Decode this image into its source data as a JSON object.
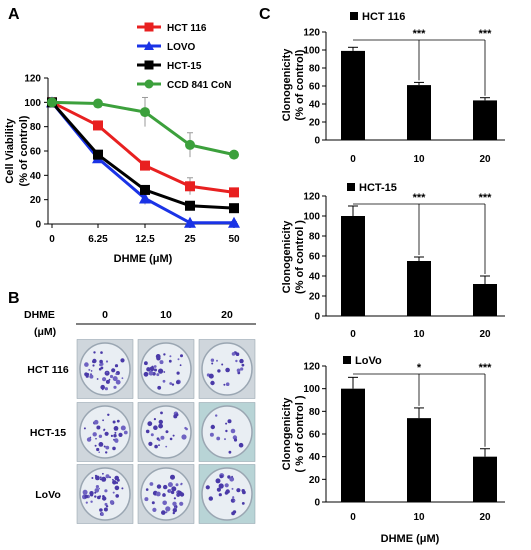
{
  "panels": {
    "A": "A",
    "B": "B",
    "C": "C"
  },
  "chart_data": [
    {
      "type": "line",
      "xlabel": "DHME (μM)",
      "ylabel": [
        "Cell Viability",
        "(% of control)"
      ],
      "categories": [
        "0",
        "6.25",
        "12.5",
        "25",
        "50"
      ],
      "ylim": [
        0,
        120
      ],
      "yticks": [
        0,
        20,
        40,
        60,
        80,
        100,
        120
      ],
      "legend_position": "top-right",
      "series": [
        {
          "name": "HCT 116",
          "color": "#e82020",
          "marker": "square",
          "values": [
            100,
            81,
            48,
            31,
            26
          ],
          "errors": [
            0,
            2,
            3,
            7,
            3
          ]
        },
        {
          "name": "LOVO",
          "color": "#1a33e6",
          "marker": "triangle",
          "values": [
            100,
            54,
            21,
            1,
            1
          ],
          "errors": [
            0,
            3,
            5,
            1,
            1
          ]
        },
        {
          "name": "HCT-15",
          "color": "#000000",
          "marker": "square",
          "values": [
            100,
            57,
            28,
            15,
            13
          ],
          "errors": [
            0,
            3,
            3,
            2,
            2
          ]
        },
        {
          "name": "CCD 841 CoN",
          "color": "#3ca03c",
          "marker": "circle",
          "values": [
            100,
            99,
            92,
            65,
            57
          ],
          "errors": [
            0,
            3,
            12,
            10,
            2
          ]
        }
      ]
    },
    {
      "type": "bar",
      "legend": "HCT 116",
      "categories": [
        "0",
        "10",
        "20"
      ],
      "values": [
        99,
        61,
        44
      ],
      "errors": [
        4,
        3,
        3
      ],
      "ylabel": [
        "Clonogenicity",
        "(% of control)"
      ],
      "ylim": [
        0,
        120
      ],
      "yticks": [
        0,
        20,
        40,
        60,
        80,
        100,
        120
      ],
      "significance": [
        "",
        "***",
        "***"
      ]
    },
    {
      "type": "bar",
      "legend": "HCT-15",
      "categories": [
        "0",
        "10",
        "20"
      ],
      "values": [
        100,
        55,
        32
      ],
      "errors": [
        10,
        4,
        8
      ],
      "ylabel": [
        "Clonogenicity",
        "(% of control )"
      ],
      "ylim": [
        0,
        120
      ],
      "yticks": [
        0,
        20,
        40,
        60,
        80,
        100,
        120
      ],
      "significance": [
        "",
        "***",
        "***"
      ]
    },
    {
      "type": "bar",
      "legend": "LoVo",
      "categories": [
        "0",
        "10",
        "20"
      ],
      "values": [
        100,
        74,
        40
      ],
      "errors": [
        10,
        9,
        7
      ],
      "ylabel": [
        "Clonogenicity",
        "( % of control )"
      ],
      "ylim": [
        0,
        120
      ],
      "yticks": [
        0,
        20,
        40,
        60,
        80,
        100,
        120
      ],
      "significance": [
        "",
        "*",
        "***"
      ],
      "xlabel": "DHME (μM)"
    }
  ],
  "colony_grid": {
    "header": "DHME",
    "unit": "(μM)",
    "doses": [
      "0",
      "10",
      "20"
    ],
    "rows": [
      {
        "label": "HCT 116",
        "density": [
          0.55,
          0.4,
          0.28
        ]
      },
      {
        "label": "HCT-15",
        "density": [
          0.5,
          0.35,
          0.18
        ]
      },
      {
        "label": "LoVo",
        "density": [
          0.65,
          0.55,
          0.35
        ]
      }
    ]
  }
}
